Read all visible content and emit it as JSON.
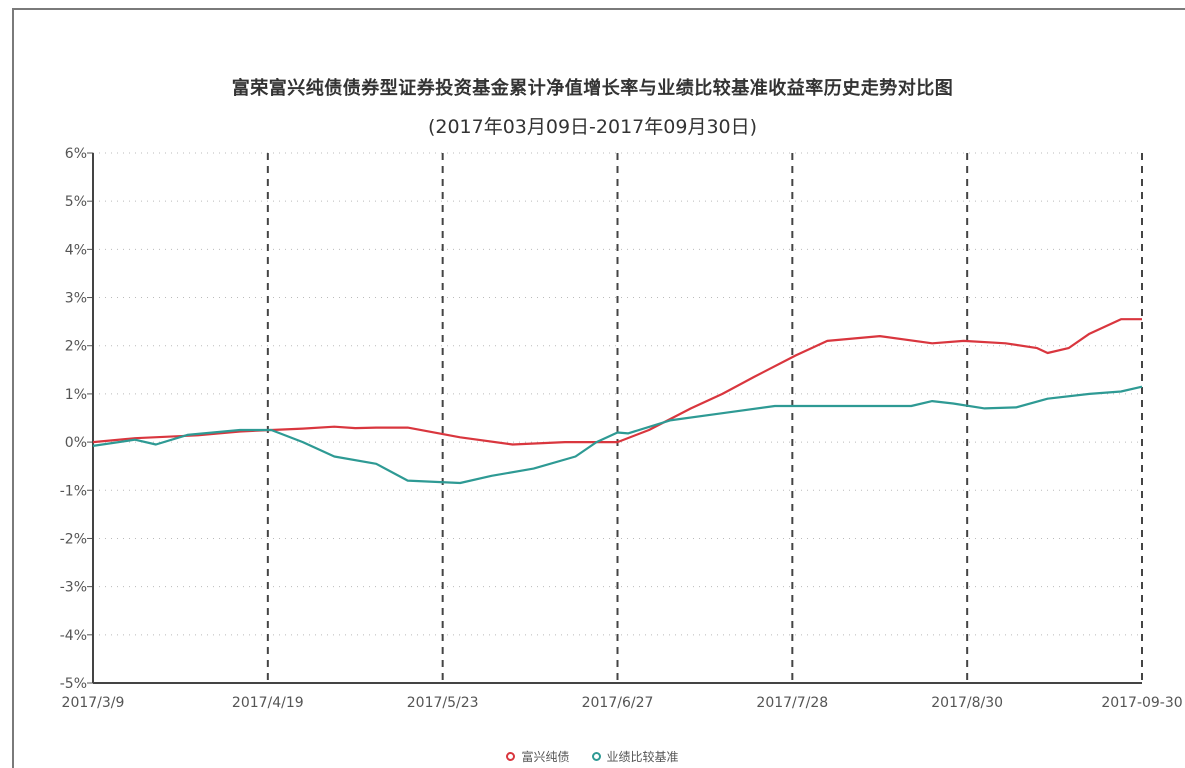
{
  "chart_data": {
    "type": "line",
    "title": "富荣富兴纯债债券型证券投资基金累计净值增长率与业绩比较基准收益率历史走势对比图",
    "subtitle": "(2017年03月09日-2017年09月30日)",
    "y_ticks": [
      "6%",
      "5%",
      "4%",
      "3%",
      "2%",
      "1%",
      "0%",
      "-1%",
      "-2%",
      "-3%",
      "-4%",
      "-5%"
    ],
    "ylim": [
      -5,
      6
    ],
    "x_ticks": [
      "2017/3/9",
      "2017/4/19",
      "2017/5/23",
      "2017/6/27",
      "2017/7/28",
      "2017/8/30",
      "2017-09-30"
    ],
    "grid": "dotted horizontal, dashed vertical",
    "legend_position": "bottom-center",
    "series": [
      {
        "name": "富兴纯债",
        "color": "#d9363e",
        "values": [
          [
            0.0,
            0.0
          ],
          [
            0.04,
            0.08
          ],
          [
            0.1,
            0.14
          ],
          [
            0.14,
            0.22
          ],
          [
            0.17,
            0.25
          ],
          [
            0.2,
            0.28
          ],
          [
            0.23,
            0.32
          ],
          [
            0.25,
            0.29
          ],
          [
            0.27,
            0.3
          ],
          [
            0.3,
            0.3
          ],
          [
            0.35,
            0.1
          ],
          [
            0.4,
            -0.05
          ],
          [
            0.45,
            0.0
          ],
          [
            0.5,
            0.0
          ],
          [
            0.53,
            0.25
          ],
          [
            0.57,
            0.7
          ],
          [
            0.6,
            1.0
          ],
          [
            0.63,
            1.35
          ],
          [
            0.67,
            1.8
          ],
          [
            0.7,
            2.1
          ],
          [
            0.75,
            2.2
          ],
          [
            0.8,
            2.05
          ],
          [
            0.83,
            2.1
          ],
          [
            0.87,
            2.05
          ],
          [
            0.9,
            1.95
          ],
          [
            0.91,
            1.85
          ],
          [
            0.93,
            1.95
          ],
          [
            0.95,
            2.25
          ],
          [
            0.98,
            2.55
          ],
          [
            1.0,
            2.55
          ]
        ]
      },
      {
        "name": "业绩比较基准",
        "color": "#2e9a94",
        "values": [
          [
            0.0,
            -0.08
          ],
          [
            0.04,
            0.05
          ],
          [
            0.06,
            -0.05
          ],
          [
            0.09,
            0.15
          ],
          [
            0.14,
            0.25
          ],
          [
            0.17,
            0.25
          ],
          [
            0.2,
            0.0
          ],
          [
            0.23,
            -0.3
          ],
          [
            0.27,
            -0.45
          ],
          [
            0.3,
            -0.8
          ],
          [
            0.35,
            -0.85
          ],
          [
            0.38,
            -0.7
          ],
          [
            0.42,
            -0.55
          ],
          [
            0.46,
            -0.3
          ],
          [
            0.48,
            0.0
          ],
          [
            0.5,
            0.2
          ],
          [
            0.51,
            0.18
          ],
          [
            0.55,
            0.45
          ],
          [
            0.6,
            0.6
          ],
          [
            0.65,
            0.75
          ],
          [
            0.7,
            0.75
          ],
          [
            0.75,
            0.75
          ],
          [
            0.78,
            0.75
          ],
          [
            0.8,
            0.85
          ],
          [
            0.82,
            0.8
          ],
          [
            0.85,
            0.7
          ],
          [
            0.88,
            0.72
          ],
          [
            0.91,
            0.9
          ],
          [
            0.95,
            1.0
          ],
          [
            0.98,
            1.05
          ],
          [
            1.0,
            1.15
          ]
        ]
      }
    ]
  }
}
